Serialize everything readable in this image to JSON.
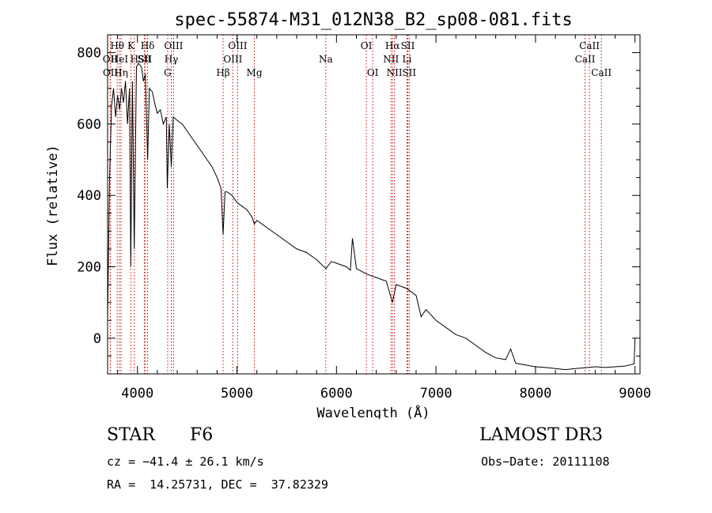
{
  "chart_data": {
    "type": "line",
    "title": "spec-55874-M31_012N38_B2_sp08-081.fits",
    "xlabel": "Wavelength (Å)",
    "ylabel": "Flux (relative)",
    "xlim": [
      3700,
      9050
    ],
    "ylim": [
      -100,
      850
    ],
    "xticks": [
      4000,
      5000,
      6000,
      7000,
      8000,
      9000
    ],
    "yticks": [
      0,
      200,
      400,
      600,
      800
    ],
    "line_color": "#000000",
    "marker_color": "#cc0000",
    "series": [
      {
        "name": "flux",
        "x": [
          3700,
          3720,
          3740,
          3760,
          3780,
          3800,
          3820,
          3840,
          3860,
          3880,
          3900,
          3920,
          3933,
          3950,
          3968,
          3990,
          4010,
          4040,
          4060,
          4080,
          4102,
          4120,
          4150,
          4180,
          4200,
          4230,
          4260,
          4290,
          4300,
          4320,
          4340,
          4360,
          4400,
          4450,
          4500,
          4550,
          4600,
          4650,
          4700,
          4750,
          4800,
          4840,
          4861,
          4880,
          4900,
          4950,
          5000,
          5050,
          5100,
          5150,
          5175,
          5200,
          5300,
          5400,
          5500,
          5600,
          5700,
          5800,
          5893,
          5950,
          6000,
          6100,
          6140,
          6160,
          6200,
          6300,
          6400,
          6500,
          6563,
          6600,
          6700,
          6800,
          6850,
          6900,
          7000,
          7100,
          7200,
          7300,
          7400,
          7500,
          7600,
          7700,
          7750,
          7800,
          7900,
          8000,
          8100,
          8200,
          8300,
          8400,
          8500,
          8600,
          8700,
          8800,
          8900,
          8950,
          8990,
          9000
        ],
        "y": [
          50,
          450,
          650,
          700,
          620,
          680,
          640,
          700,
          660,
          720,
          600,
          700,
          200,
          720,
          250,
          760,
          770,
          760,
          720,
          740,
          500,
          700,
          690,
          650,
          630,
          640,
          600,
          620,
          420,
          600,
          480,
          620,
          610,
          600,
          580,
          560,
          540,
          520,
          500,
          480,
          450,
          420,
          290,
          410,
          410,
          400,
          380,
          370,
          360,
          340,
          320,
          330,
          310,
          290,
          270,
          250,
          240,
          220,
          195,
          215,
          210,
          200,
          190,
          280,
          195,
          180,
          170,
          160,
          100,
          150,
          140,
          120,
          60,
          80,
          50,
          30,
          10,
          0,
          -20,
          -40,
          -55,
          -60,
          -30,
          -70,
          -75,
          -80,
          -82,
          -85,
          -88,
          -85,
          -83,
          -80,
          -82,
          -80,
          -78,
          -75,
          -72,
          0
        ]
      }
    ],
    "lines": [
      {
        "label": "Hθ",
        "x": 3797,
        "row": 1
      },
      {
        "label": "OII",
        "x": 3727,
        "row": 2
      },
      {
        "label": "OII",
        "x": 3729,
        "row": 3
      },
      {
        "label": "HeI",
        "x": 3819,
        "row": 2
      },
      {
        "label": "Hη",
        "x": 3835,
        "row": 3
      },
      {
        "label": "K",
        "x": 3934,
        "row": 1
      },
      {
        "label": "H",
        "x": 3969,
        "row": 2
      },
      {
        "label": "Hδ",
        "x": 4102,
        "row": 1
      },
      {
        "label": "SII",
        "x": 4069,
        "row": 2
      },
      {
        "label": "SII",
        "x": 4076,
        "row": 2
      },
      {
        "label": "OIII",
        "x": 4363,
        "row": 1
      },
      {
        "label": "Hγ",
        "x": 4340,
        "row": 2
      },
      {
        "label": "G",
        "x": 4304,
        "row": 3
      },
      {
        "label": "Hβ",
        "x": 4861,
        "row": 3
      },
      {
        "label": "OIII",
        "x": 5007,
        "row": 1
      },
      {
        "label": "OIII",
        "x": 4959,
        "row": 2
      },
      {
        "label": "Mg",
        "x": 5175,
        "row": 3
      },
      {
        "label": "Na",
        "x": 5893,
        "row": 2
      },
      {
        "label": "OI",
        "x": 6300,
        "row": 1
      },
      {
        "label": "OI",
        "x": 6364,
        "row": 3
      },
      {
        "label": "Hα",
        "x": 6563,
        "row": 1
      },
      {
        "label": "NII",
        "x": 6548,
        "row": 2
      },
      {
        "label": "NII",
        "x": 6583,
        "row": 3
      },
      {
        "label": "SII",
        "x": 6717,
        "row": 1
      },
      {
        "label": "Li",
        "x": 6708,
        "row": 2
      },
      {
        "label": "SII",
        "x": 6731,
        "row": 3
      },
      {
        "label": "CaII",
        "x": 8542,
        "row": 1
      },
      {
        "label": "CaII",
        "x": 8498,
        "row": 2
      },
      {
        "label": "CaII",
        "x": 8662,
        "row": 3
      }
    ]
  },
  "info": {
    "class_label": "STAR",
    "subclass": "F6",
    "survey": "LAMOST DR3",
    "redshift": "cz = −41.4 ± 26.1 km/s",
    "obs_date": "Obs−Date: 20111108",
    "coords": "RA =  14.25731, DEC =  37.82329"
  }
}
